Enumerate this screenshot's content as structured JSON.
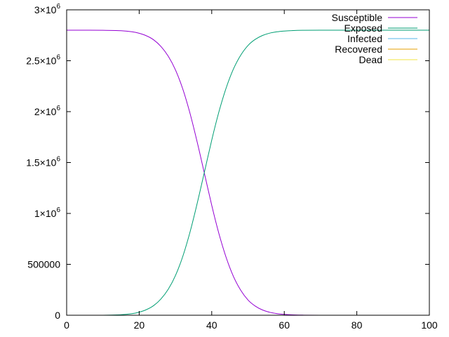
{
  "chart_data": {
    "type": "line",
    "title": "",
    "xlabel": "",
    "ylabel": "",
    "xlim": [
      0,
      100
    ],
    "ylim": [
      0,
      3000000
    ],
    "grid": false,
    "legend_position": "top-right",
    "x_ticks": [
      {
        "value": 0,
        "label": "0"
      },
      {
        "value": 20,
        "label": "20"
      },
      {
        "value": 40,
        "label": "40"
      },
      {
        "value": 60,
        "label": "60"
      },
      {
        "value": 80,
        "label": "80"
      },
      {
        "value": 100,
        "label": "100"
      }
    ],
    "y_ticks": [
      {
        "value": 0,
        "label": "0",
        "sup": ""
      },
      {
        "value": 500000,
        "label": "500000",
        "sup": ""
      },
      {
        "value": 1000000,
        "label": "1×10",
        "sup": "6"
      },
      {
        "value": 1500000,
        "label": "1.5×10",
        "sup": "6"
      },
      {
        "value": 2000000,
        "label": "2×10",
        "sup": "6"
      },
      {
        "value": 2500000,
        "label": "2.5×10",
        "sup": "6"
      },
      {
        "value": 3000000,
        "label": "3×10",
        "sup": "6"
      }
    ],
    "x": [
      0,
      10,
      15,
      18,
      20,
      22,
      24,
      26,
      28,
      30,
      32,
      34,
      36,
      38,
      40,
      42,
      44,
      46,
      48,
      50,
      52,
      54,
      56,
      58,
      60,
      62,
      65,
      70,
      80,
      90,
      100
    ],
    "series": [
      {
        "name": "Susceptible",
        "color": "#9400d3",
        "values": [
          2800000,
          2799000,
          2795000,
          2785000,
          2770000,
          2745000,
          2705000,
          2640000,
          2545000,
          2410000,
          2225000,
          1985000,
          1700000,
          1390000,
          1080000,
          800000,
          565000,
          380000,
          245000,
          150000,
          90000,
          52000,
          29000,
          16000,
          8000,
          4000,
          1500,
          300,
          0,
          0,
          0
        ]
      },
      {
        "name": "Exposed",
        "color": "#009e73",
        "values": [
          0,
          0,
          5000,
          15000,
          30000,
          55000,
          95000,
          160000,
          255000,
          390000,
          575000,
          815000,
          1100000,
          1410000,
          1720000,
          2000000,
          2235000,
          2420000,
          2555000,
          2650000,
          2710000,
          2748000,
          2771000,
          2784000,
          2792000,
          2796000,
          2799000,
          2800000,
          2800000,
          2800000,
          2800000
        ]
      },
      {
        "name": "Infected",
        "color": "#56b4e9",
        "values": [
          0,
          0,
          0,
          0,
          0,
          0,
          0,
          0,
          0,
          0,
          0,
          0,
          0,
          0,
          0,
          0,
          0,
          0,
          0,
          0,
          0,
          0,
          0,
          0,
          0,
          0,
          0,
          0,
          0,
          0,
          0
        ]
      },
      {
        "name": "Recovered",
        "color": "#e69f00",
        "values": [
          0,
          0,
          0,
          0,
          0,
          0,
          0,
          0,
          0,
          0,
          0,
          0,
          0,
          0,
          0,
          0,
          0,
          0,
          0,
          0,
          0,
          0,
          0,
          0,
          0,
          0,
          0,
          0,
          0,
          0,
          0
        ]
      },
      {
        "name": "Dead",
        "color": "#f0e442",
        "values": [
          0,
          0,
          0,
          0,
          0,
          0,
          0,
          0,
          0,
          0,
          0,
          0,
          0,
          0,
          0,
          0,
          0,
          0,
          0,
          0,
          0,
          0,
          0,
          0,
          0,
          0,
          0,
          0,
          0,
          0,
          0
        ]
      }
    ]
  }
}
